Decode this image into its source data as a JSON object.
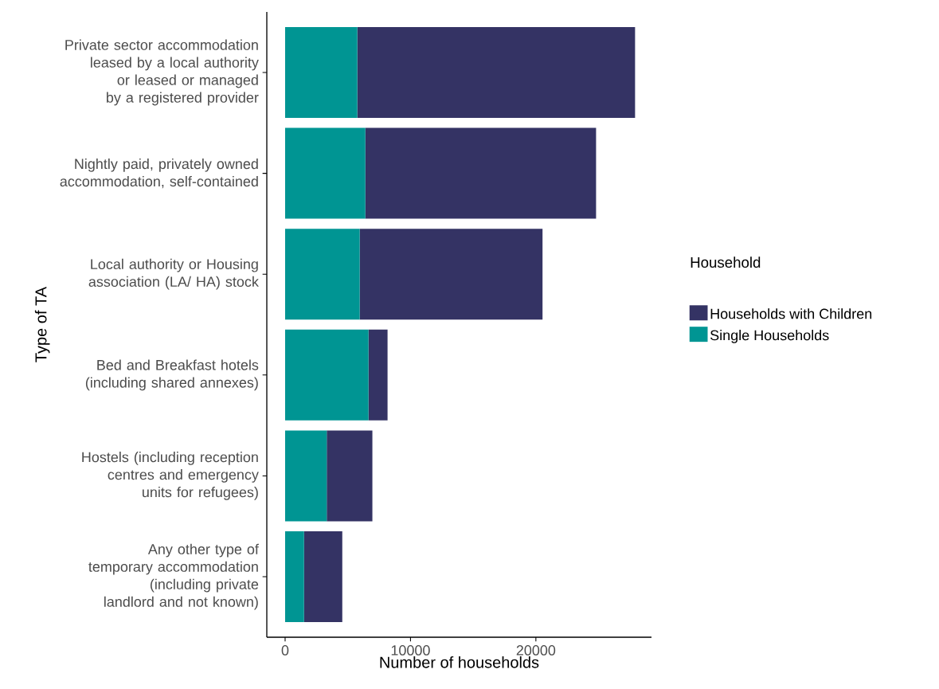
{
  "chart_data": {
    "type": "bar",
    "orientation": "horizontal",
    "stacked": true,
    "categories": [
      "Private sector accommodation leased by a local authority or leased or managed by a registered provider",
      "Nightly paid, privately owned accommodation, self-contained",
      "Local authority or Housing association (LA/ HA) stock",
      "Bed and Breakfast hotels (including shared annexes)",
      "Hostels (including reception centres and emergency units for refugees)",
      "Any other type of temporary accommodation (including private landlord and not known)"
    ],
    "series": [
      {
        "name": "Single Households",
        "color": "#009593",
        "values": [
          5760,
          6400,
          5950,
          6650,
          3320,
          1510
        ]
      },
      {
        "name": "Households with Children",
        "color": "#343364",
        "values": [
          22150,
          18400,
          14580,
          1520,
          3640,
          3050
        ]
      }
    ],
    "xlim": [
      -1460,
      29220
    ],
    "xticks": [
      0,
      10000,
      20000
    ],
    "xlabel": "Number of households",
    "ylabel": "Type of TA",
    "legend_title": "Household",
    "legend": "right",
    "grid": false
  }
}
